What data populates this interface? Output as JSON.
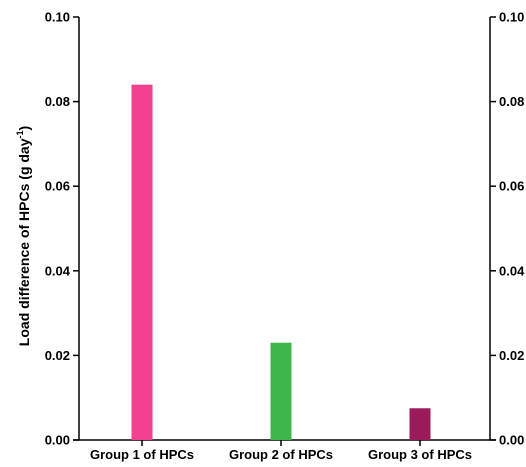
{
  "chart_data": {
    "type": "bar",
    "title": "",
    "xlabel": "",
    "ylabel": {
      "text": "Load difference of HPCs (g day",
      "superscript": "-1",
      "suffix": ")"
    },
    "categories": [
      "Group 1 of HPCs",
      "Group 2 of HPCs",
      "Group 3 of HPCs"
    ],
    "values": [
      0.084,
      0.023,
      0.0075
    ],
    "colors": [
      "#f0408e",
      "#3db54a",
      "#9b1a5a"
    ],
    "ylim": [
      0,
      0.1
    ],
    "yticks": [
      "0.00",
      "0.02",
      "0.04",
      "0.06",
      "0.08",
      "0.10"
    ],
    "secondary_y_axis": true,
    "grid": false,
    "legend": "none"
  }
}
